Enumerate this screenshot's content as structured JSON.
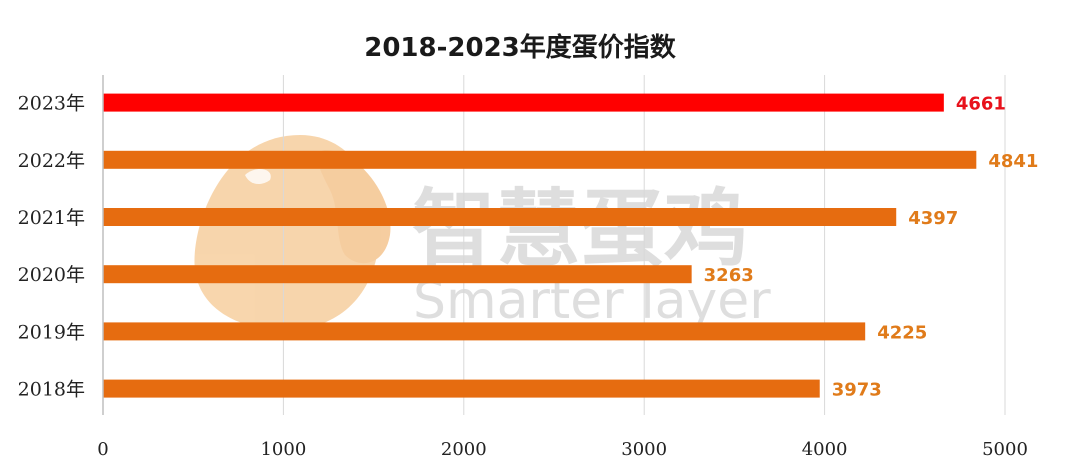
{
  "chart_data": {
    "type": "bar",
    "orientation": "horizontal",
    "title": "2018-2023年度蛋价指数",
    "categories": [
      "2023年",
      "2022年",
      "2021年",
      "2020年",
      "2019年",
      "2018年"
    ],
    "values": [
      4661,
      4841,
      4397,
      3263,
      4225,
      3973
    ],
    "value_labels": [
      "4661",
      "4841",
      "4397",
      "3263",
      "4225",
      "3973"
    ],
    "xlim": [
      0,
      5000
    ],
    "x_ticks": [
      0,
      1000,
      2000,
      3000,
      4000,
      5000
    ],
    "x_tick_labels": [
      "0",
      "1000",
      "2000",
      "3000",
      "4000",
      "5000"
    ],
    "grid": "vertical",
    "legend": "none",
    "colors": {
      "highlight": "#ff0000",
      "highlight_label": "#e8111b",
      "default": "#e66c10",
      "default_label": "#e07b1a",
      "grid": "#d9d9d9"
    },
    "highlight_index": 0
  },
  "watermark": {
    "text_cn": "智慧蛋鸡",
    "text_en": "Smarter layer",
    "logo_color": "#f7c890"
  }
}
